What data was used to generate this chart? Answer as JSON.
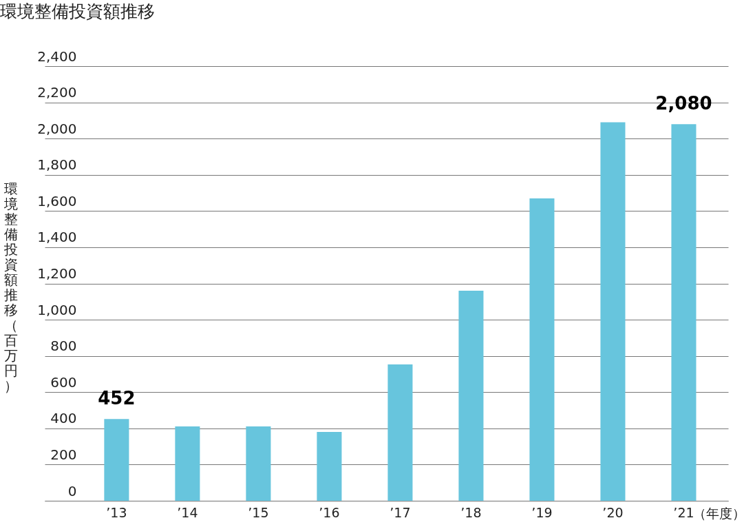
{
  "chart_data": {
    "type": "bar",
    "title": "環境整備投資額推移",
    "ylabel": "環境整備投資額推移（百万円）",
    "xlabel": "（年度）",
    "categories": [
      "’13",
      "’14",
      "’15",
      "’16",
      "’17",
      "’18",
      "’19",
      "’20",
      "’21"
    ],
    "values": [
      452,
      411,
      411,
      380,
      753,
      1160,
      1670,
      2090,
      2080
    ],
    "value_labels": [
      "452",
      null,
      null,
      null,
      null,
      null,
      null,
      null,
      "2,080"
    ],
    "color": "#67c5dd",
    "ylim": [
      0,
      2400
    ],
    "yticks": [
      0,
      200,
      400,
      600,
      800,
      {
        "value": 1000,
        "label": "1,000"
      },
      {
        "value": 1200,
        "label": "1,200"
      },
      {
        "value": 1400,
        "label": "1,400"
      },
      {
        "value": 1600,
        "label": "1,600"
      },
      {
        "value": 1800,
        "label": "1,800"
      },
      {
        "value": 2000,
        "label": "2,000"
      },
      {
        "value": 2200,
        "label": "2,200"
      },
      {
        "value": 2400,
        "label": "2,400"
      }
    ],
    "grid": "y"
  }
}
